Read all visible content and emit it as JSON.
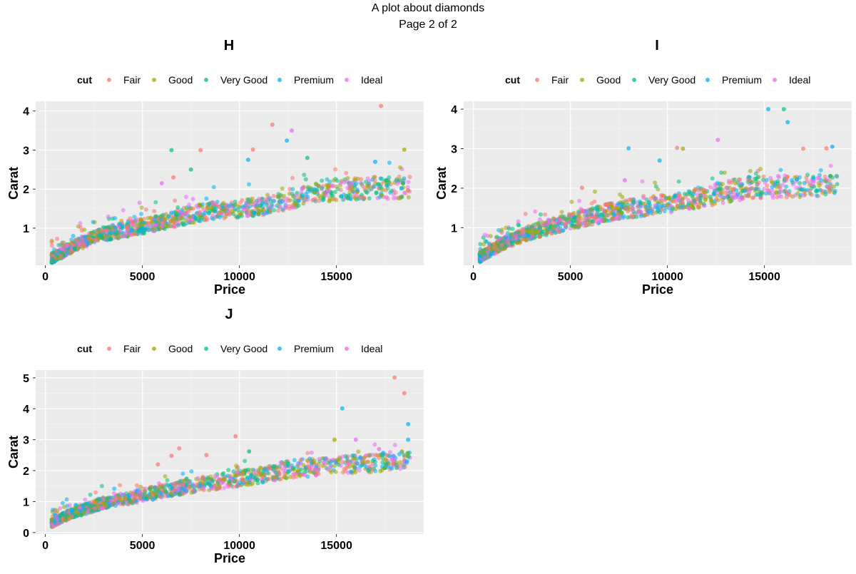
{
  "page": {
    "title": "A plot about diamonds",
    "subtitle": "Page 2 of 2"
  },
  "legend": {
    "title": "cut",
    "entries": [
      {
        "label": "Fair",
        "color": "#F8766D"
      },
      {
        "label": "Good",
        "color": "#A3A500"
      },
      {
        "label": "Very Good",
        "color": "#00BF7D"
      },
      {
        "label": "Premium",
        "color": "#00B0F6"
      },
      {
        "label": "Ideal",
        "color": "#E76BF3"
      }
    ]
  },
  "chart_data": [
    {
      "type": "scatter",
      "facet": "H",
      "xlabel": "Price",
      "ylabel": "Carat",
      "xlim": [
        -500,
        19500
      ],
      "ylim": [
        0.05,
        4.25
      ],
      "xticks": [
        0,
        5000,
        10000,
        15000
      ],
      "yticks": [
        1,
        2,
        3,
        4
      ],
      "band_anchors": [
        [
          330,
          0.23
        ],
        [
          800,
          0.35
        ],
        [
          1500,
          0.55
        ],
        [
          3000,
          0.85
        ],
        [
          5000,
          1.05
        ],
        [
          8000,
          1.4
        ],
        [
          11000,
          1.55
        ],
        [
          13000,
          1.8
        ],
        [
          15000,
          2.0
        ],
        [
          18800,
          2.05
        ]
      ],
      "outliers": [
        {
          "x": 17300,
          "y": 4.13,
          "cut": "Fair"
        },
        {
          "x": 11700,
          "y": 3.65,
          "cut": "Fair"
        },
        {
          "x": 12700,
          "y": 3.5,
          "cut": "Ideal"
        },
        {
          "x": 12450,
          "y": 3.24,
          "cut": "Premium"
        },
        {
          "x": 6500,
          "y": 3.0,
          "cut": "Very Good"
        },
        {
          "x": 8000,
          "y": 3.0,
          "cut": "Fair"
        },
        {
          "x": 10700,
          "y": 3.01,
          "cut": "Fair"
        },
        {
          "x": 18500,
          "y": 3.01,
          "cut": "Good"
        },
        {
          "x": 10450,
          "y": 2.75,
          "cut": "Premium"
        },
        {
          "x": 13500,
          "y": 2.8,
          "cut": "Very Good"
        },
        {
          "x": 17000,
          "y": 2.7,
          "cut": "Premium"
        },
        {
          "x": 6600,
          "y": 2.3,
          "cut": "Fair"
        },
        {
          "x": 6000,
          "y": 2.15,
          "cut": "Ideal"
        },
        {
          "x": 7500,
          "y": 2.5,
          "cut": "Very Good"
        }
      ]
    },
    {
      "type": "scatter",
      "facet": "I",
      "xlabel": "Price",
      "ylabel": "Carat",
      "xlim": [
        -500,
        19500
      ],
      "ylim": [
        0.05,
        4.2
      ],
      "xticks": [
        0,
        5000,
        10000,
        15000
      ],
      "yticks": [
        1,
        2,
        3,
        4
      ],
      "band_anchors": [
        [
          330,
          0.25
        ],
        [
          800,
          0.38
        ],
        [
          1500,
          0.6
        ],
        [
          3000,
          0.9
        ],
        [
          5000,
          1.15
        ],
        [
          7500,
          1.45
        ],
        [
          10000,
          1.6
        ],
        [
          12000,
          1.8
        ],
        [
          14000,
          2.0
        ],
        [
          18800,
          2.1
        ]
      ],
      "outliers": [
        {
          "x": 15200,
          "y": 4.0,
          "cut": "Premium"
        },
        {
          "x": 16000,
          "y": 4.0,
          "cut": "Very Good"
        },
        {
          "x": 16200,
          "y": 3.67,
          "cut": "Premium"
        },
        {
          "x": 10500,
          "y": 3.02,
          "cut": "Fair"
        },
        {
          "x": 10800,
          "y": 3.0,
          "cut": "Good"
        },
        {
          "x": 8000,
          "y": 3.01,
          "cut": "Premium"
        },
        {
          "x": 12600,
          "y": 3.22,
          "cut": "Ideal"
        },
        {
          "x": 18200,
          "y": 3.01,
          "cut": "Fair"
        },
        {
          "x": 18500,
          "y": 3.05,
          "cut": "Premium"
        },
        {
          "x": 17000,
          "y": 3.0,
          "cut": "Fair"
        },
        {
          "x": 9600,
          "y": 2.7,
          "cut": "Premium"
        },
        {
          "x": 5600,
          "y": 2.01,
          "cut": "Fair"
        },
        {
          "x": 7800,
          "y": 2.2,
          "cut": "Ideal"
        }
      ]
    },
    {
      "type": "scatter",
      "facet": "J",
      "xlabel": "Price",
      "ylabel": "Carat",
      "xlim": [
        -500,
        19500
      ],
      "ylim": [
        -0.05,
        5.25
      ],
      "xticks": [
        0,
        5000,
        10000,
        15000
      ],
      "yticks": [
        0,
        1,
        2,
        3,
        4,
        5
      ],
      "band_anchors": [
        [
          330,
          0.3
        ],
        [
          800,
          0.45
        ],
        [
          1500,
          0.65
        ],
        [
          3000,
          0.95
        ],
        [
          5000,
          1.2
        ],
        [
          7000,
          1.45
        ],
        [
          9000,
          1.65
        ],
        [
          11000,
          1.85
        ],
        [
          12500,
          2.05
        ],
        [
          15000,
          2.15
        ],
        [
          18800,
          2.35
        ]
      ],
      "outliers": [
        {
          "x": 18000,
          "y": 5.01,
          "cut": "Fair"
        },
        {
          "x": 18500,
          "y": 4.5,
          "cut": "Fair"
        },
        {
          "x": 15300,
          "y": 4.01,
          "cut": "Premium"
        },
        {
          "x": 18700,
          "y": 3.5,
          "cut": "Premium"
        },
        {
          "x": 9800,
          "y": 3.11,
          "cut": "Fair"
        },
        {
          "x": 14900,
          "y": 3.0,
          "cut": "Good"
        },
        {
          "x": 18700,
          "y": 3.0,
          "cut": "Premium"
        },
        {
          "x": 16000,
          "y": 3.0,
          "cut": "Ideal"
        },
        {
          "x": 6900,
          "y": 2.72,
          "cut": "Fair"
        },
        {
          "x": 6500,
          "y": 2.48,
          "cut": "Fair"
        },
        {
          "x": 10500,
          "y": 2.62,
          "cut": "Very Good"
        },
        {
          "x": 17200,
          "y": 2.7,
          "cut": "Ideal"
        },
        {
          "x": 5800,
          "y": 2.2,
          "cut": "Fair"
        },
        {
          "x": 8300,
          "y": 2.5,
          "cut": "Fair"
        }
      ]
    }
  ]
}
